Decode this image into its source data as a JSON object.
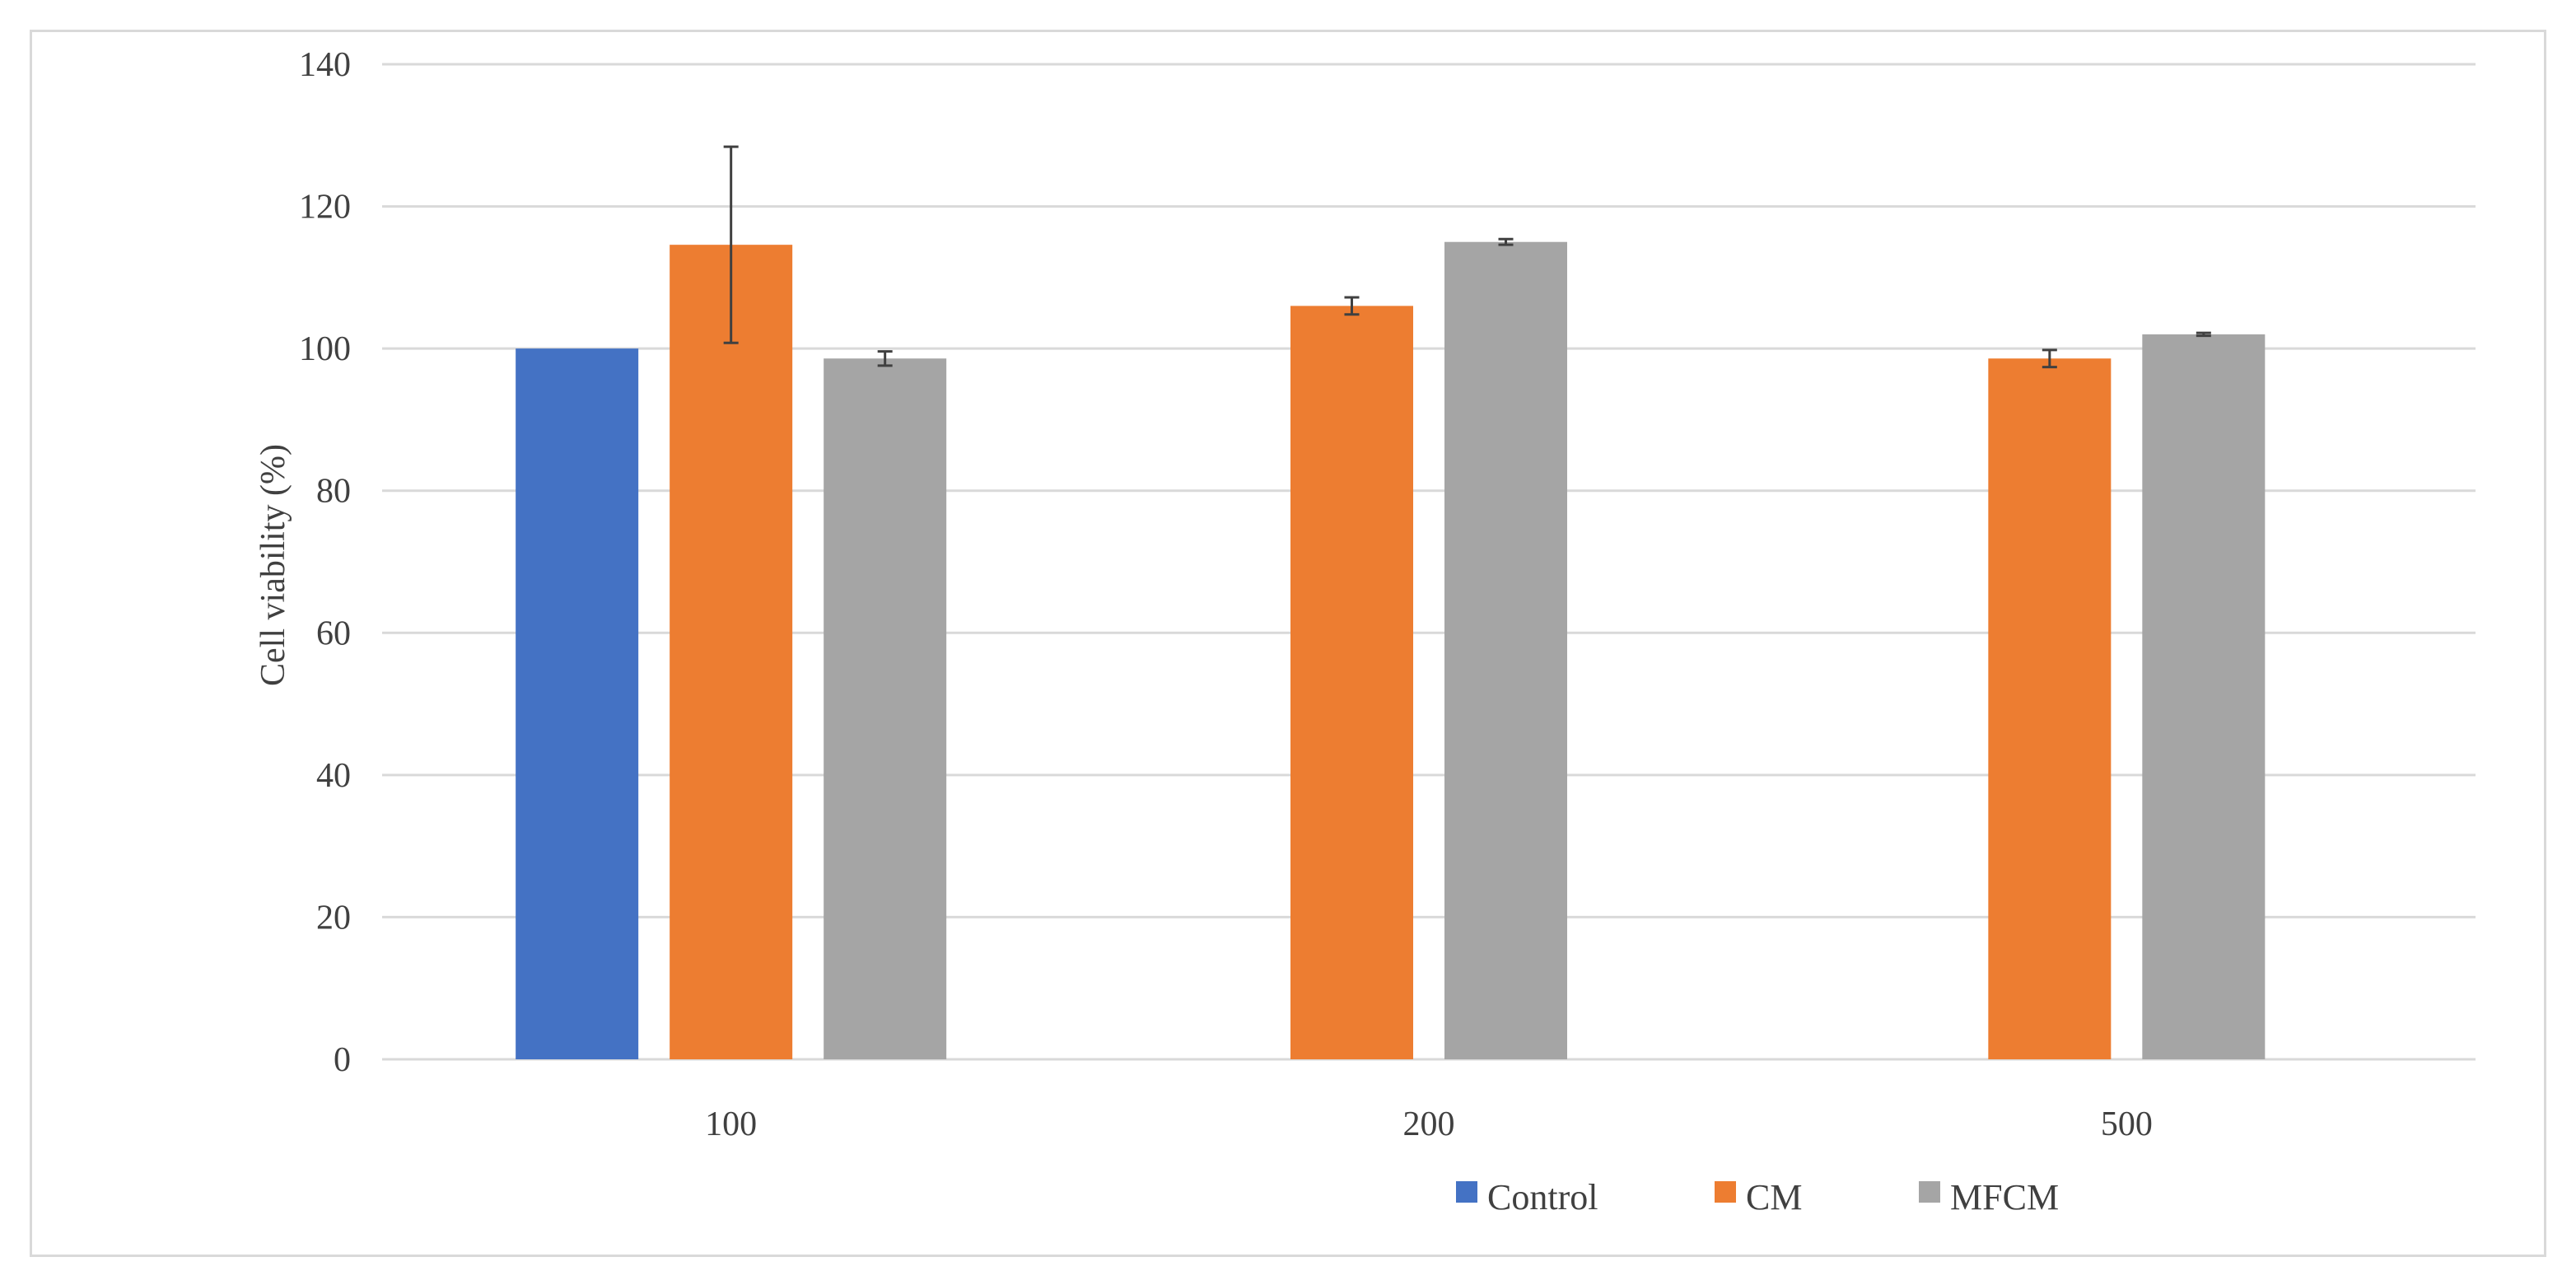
{
  "chart_data": {
    "type": "bar",
    "title": "",
    "xlabel": "",
    "ylabel": "Cell viability (%)",
    "ylim": [
      0,
      140
    ],
    "yticks": [
      0,
      20,
      40,
      60,
      80,
      100,
      120,
      140
    ],
    "grid": true,
    "legend_position": "bottom-right",
    "categories": [
      "100",
      "200",
      "500"
    ],
    "series": [
      {
        "name": "Control",
        "color": "#4472c4",
        "values": [
          100,
          null,
          null
        ],
        "errors": [
          0,
          null,
          null
        ]
      },
      {
        "name": "CM",
        "color": "#ed7d31",
        "values": [
          114.6,
          106,
          98.6
        ],
        "errors": [
          13.8,
          1.2,
          1.2
        ]
      },
      {
        "name": "MFCM",
        "color": "#a5a5a5",
        "values": [
          98.6,
          115,
          102
        ],
        "errors": [
          1,
          0.4,
          0.2
        ]
      }
    ]
  }
}
